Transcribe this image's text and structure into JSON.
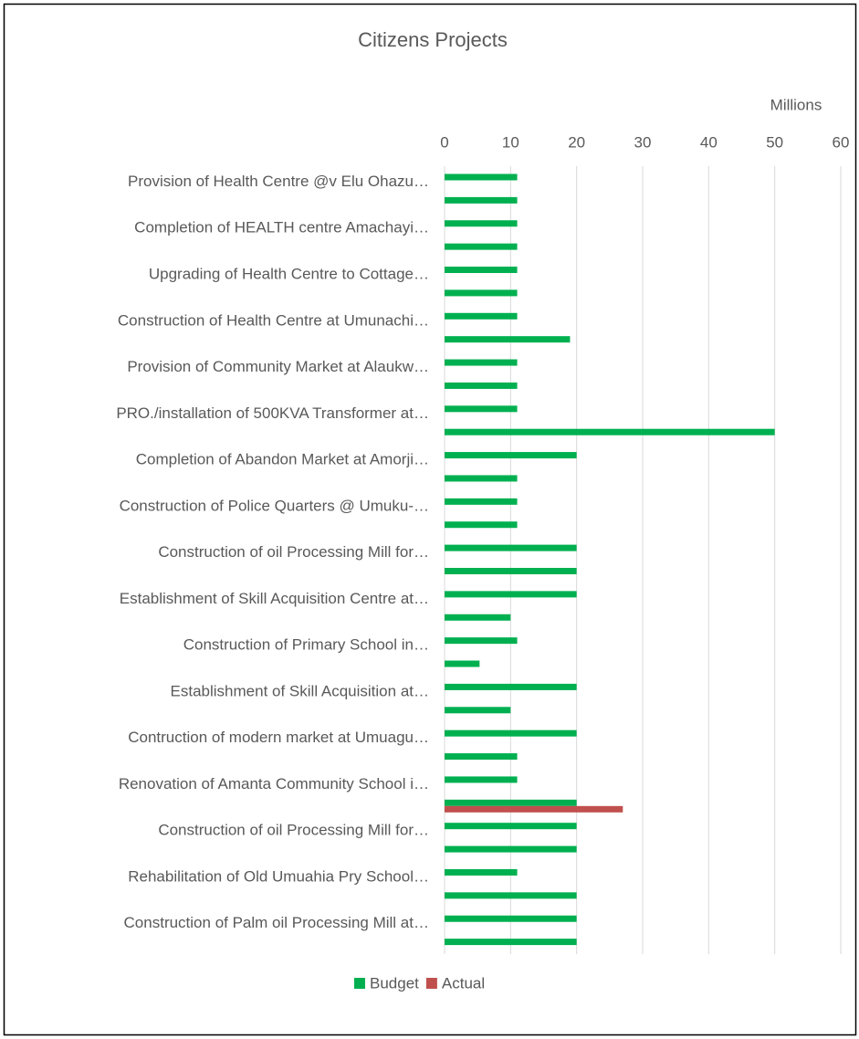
{
  "chart_data": {
    "type": "hbar",
    "title": "Citizens Projects",
    "x_label": "Millions",
    "categories": [
      "Provision of Health Centre @v Elu Ohazu…",
      null,
      "Completion of HEALTH centre Amachayi…",
      null,
      "Upgrading of Health Centre to  Cottage…",
      null,
      "Construction of Health Centre at Umunachi…",
      null,
      "Provision of Community Market at  Alaukw…",
      null,
      "PRO./installation of 500KVA Transformer at…",
      null,
      "Completion of Abandon Market at Amorji…",
      null,
      "Construction of Police Quarters @ Umuku-…",
      null,
      "Construction of oil Processing Mill for…",
      null,
      "Establishment of Skill Acquisition Centre at…",
      null,
      "Construction of Primary School in…",
      null,
      "Establishment of Skill Acquisition at…",
      null,
      "Contruction of modern market at Umuagu…",
      null,
      "Renovation of Amanta Community School i…",
      null,
      "Construction of oil Processing Mill for…",
      null,
      "Rehabilitation of Old Umuahia Pry School…",
      null,
      "Construction of  Palm oil Processing Mill  at…",
      null
    ],
    "series": [
      {
        "name": "Budget",
        "color": "#00b050",
        "values": [
          11,
          11,
          11,
          11,
          11,
          11,
          11,
          19,
          11,
          11,
          11,
          50,
          20,
          11,
          11,
          11,
          20,
          20,
          20,
          10,
          11,
          5.3,
          20,
          10,
          20,
          11,
          11,
          20,
          20,
          20,
          11,
          20,
          20,
          20
        ]
      },
      {
        "name": "Actual",
        "color": "#c0504d",
        "values": [
          null,
          null,
          null,
          null,
          null,
          null,
          null,
          null,
          null,
          null,
          null,
          null,
          null,
          null,
          null,
          null,
          null,
          null,
          null,
          null,
          null,
          null,
          null,
          null,
          null,
          null,
          null,
          27,
          null,
          null,
          null,
          null,
          null,
          null
        ]
      }
    ],
    "xlim": [
      0,
      60
    ],
    "xticks": [
      0,
      10,
      20,
      30,
      40,
      50,
      60
    ],
    "grid": true,
    "legend": "bottom"
  }
}
